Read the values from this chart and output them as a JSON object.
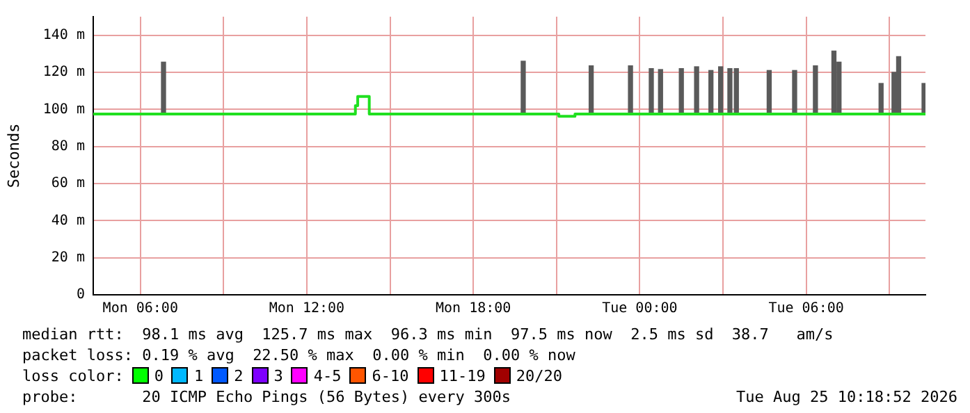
{
  "chart_data": {
    "type": "step",
    "ylabel": "Seconds",
    "xlim": [
      "2026-08-24T04:18",
      "2026-08-25T10:18"
    ],
    "xticks": [
      {
        "value": "2026-08-24T06:00",
        "label": "Mon 06:00"
      },
      {
        "value": "2026-08-24T09:00",
        "label": null
      },
      {
        "value": "2026-08-24T12:00",
        "label": "Mon 12:00"
      },
      {
        "value": "2026-08-24T15:00",
        "label": null
      },
      {
        "value": "2026-08-24T18:00",
        "label": "Mon 18:00"
      },
      {
        "value": "2026-08-24T21:00",
        "label": null
      },
      {
        "value": "2026-08-25T00:00",
        "label": "Tue 00:00"
      },
      {
        "value": "2026-08-25T03:00",
        "label": null
      },
      {
        "value": "2026-08-25T06:00",
        "label": "Tue 06:00"
      },
      {
        "value": "2026-08-25T09:00",
        "label": null
      }
    ],
    "ylim": [
      0,
      150
    ],
    "yticks": [
      {
        "value": 0,
        "label": "0"
      },
      {
        "value": 20,
        "label": "20 m"
      },
      {
        "value": 40,
        "label": "40 m"
      },
      {
        "value": 60,
        "label": "60 m"
      },
      {
        "value": 80,
        "label": "80 m"
      },
      {
        "value": 100,
        "label": "100 m"
      },
      {
        "value": 120,
        "label": "120 m"
      },
      {
        "value": 140,
        "label": "140 m"
      }
    ],
    "grid": true,
    "legend": false,
    "series": [
      {
        "type": "bar",
        "color": "#5a5a5a",
        "x": [
          "2026-08-24T06:50",
          "2026-08-24T19:48",
          "2026-08-24T22:15",
          "2026-08-24T23:40",
          "2026-08-25T00:25",
          "2026-08-25T00:45",
          "2026-08-25T01:30",
          "2026-08-25T02:03",
          "2026-08-25T02:34",
          "2026-08-25T02:55",
          "2026-08-25T03:15",
          "2026-08-25T03:29",
          "2026-08-25T04:40",
          "2026-08-25T05:35",
          "2026-08-25T06:20",
          "2026-08-25T07:00",
          "2026-08-25T07:11",
          "2026-08-25T08:42",
          "2026-08-25T09:10",
          "2026-08-25T09:20",
          "2026-08-25T10:15"
        ],
        "base": [
          97,
          97,
          97,
          97,
          97,
          97,
          97,
          97,
          97,
          97,
          97,
          97,
          97,
          97,
          97,
          97,
          97,
          97,
          97,
          97,
          97
        ],
        "values": [
          28.5,
          29,
          26.5,
          26.5,
          25,
          24.5,
          25,
          26,
          24,
          26,
          25,
          25,
          24,
          24,
          26.5,
          34.5,
          28.5,
          17,
          23,
          31.5,
          17
        ]
      },
      {
        "color": "#20e020",
        "x": [
          "2026-08-24T04:18",
          "2026-08-24T13:45",
          "2026-08-24T13:50",
          "2026-08-24T14:15",
          "2026-08-24T21:05",
          "2026-08-24T21:40",
          "2026-08-25T10:18"
        ],
        "values": [
          97.5,
          102,
          107,
          97.5,
          96.3,
          97.5,
          97.5
        ]
      }
    ],
    "annotations": [
      "median rtt:  98.1 ms avg  125.7 ms max  96.3 ms min  97.5 ms now  2.5 ms sd  38.7   am/s",
      "packet loss: 0.19 % avg  22.50 % max  0.00 % min  0.00 % now",
      "loss color:",
      "0",
      "1",
      "2",
      "3",
      "4-5",
      "6-10",
      "11-19",
      "20/20",
      "probe:       20 ICMP Echo Pings (56 Bytes) every 300s",
      "Tue Aug 25 10:18:52 2026"
    ]
  }
}
